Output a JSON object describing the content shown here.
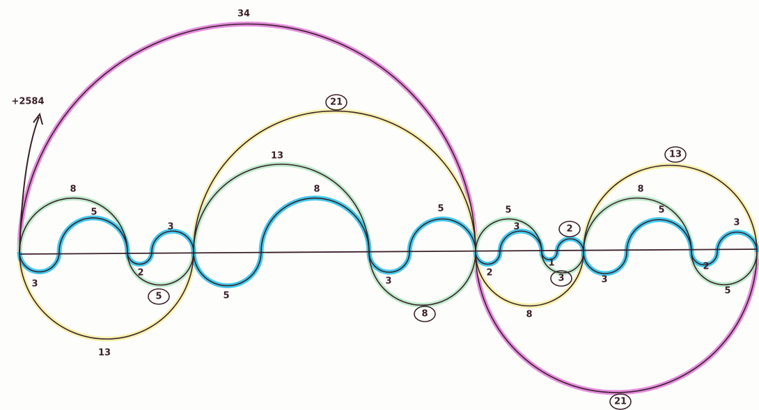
{
  "labels": [
    "34",
    "21",
    "21",
    "13",
    "13",
    "13",
    "8",
    "8",
    "8",
    "8",
    "8",
    "5",
    "5",
    "5",
    "5",
    "5",
    "5",
    "5",
    "3",
    "3",
    "3",
    "3",
    "3",
    "3",
    "3",
    "2",
    "2",
    "2",
    "1",
    "2"
  ],
  "annotation": "+2584"
}
